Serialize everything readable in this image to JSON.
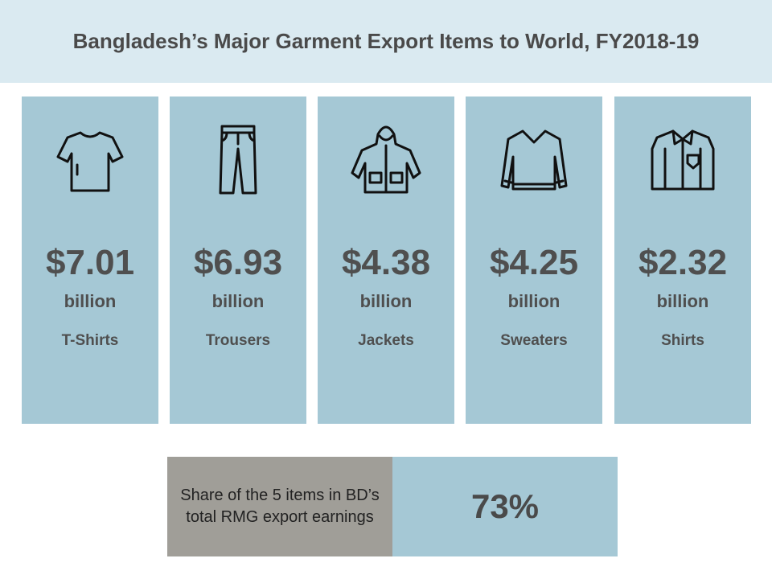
{
  "header": {
    "title": "Bangladesh’s Major Garment Export Items to World, FY2018-19"
  },
  "items": [
    {
      "value": "$7.01",
      "unit": "billion",
      "label": "T-Shirts",
      "icon": "tshirt"
    },
    {
      "value": "$6.93",
      "unit": "billion",
      "label": "Trousers",
      "icon": "trousers"
    },
    {
      "value": "$4.38",
      "unit": "billion",
      "label": "Jackets",
      "icon": "jacket"
    },
    {
      "value": "$4.25",
      "unit": "billion",
      "label": "Sweaters",
      "icon": "sweater"
    },
    {
      "value": "$2.32",
      "unit": "billion",
      "label": "Shirts",
      "icon": "shirt"
    }
  ],
  "share": {
    "label": "Share of the 5 items in BD’s total RMG export earnings",
    "value": "73%"
  }
}
